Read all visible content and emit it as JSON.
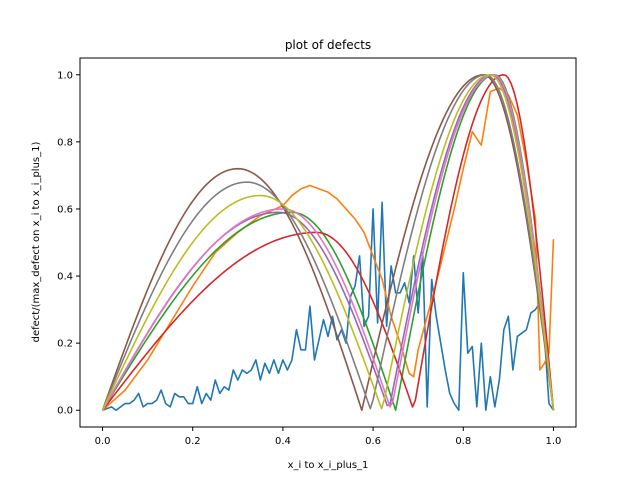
{
  "chart_data": {
    "type": "line",
    "title": "plot of defects",
    "xlabel": "x_i to x_i_plus_1",
    "ylabel": "defect/(max_defect on x_i to x_i_plus_1)",
    "xlim": [
      -0.05,
      1.05
    ],
    "ylim": [
      -0.05,
      1.05
    ],
    "xticks": [
      0.0,
      0.2,
      0.4,
      0.6,
      0.8,
      1.0
    ],
    "xtick_labels": [
      "0.0",
      "0.2",
      "0.4",
      "0.6",
      "0.8",
      "1.0"
    ],
    "yticks": [
      0.0,
      0.2,
      0.4,
      0.6,
      0.8,
      1.0
    ],
    "ytick_labels": [
      "0.0",
      "0.2",
      "0.4",
      "0.6",
      "0.8",
      "1.0"
    ],
    "grid": false,
    "legend": false,
    "series": [
      {
        "color": "#1f77b4",
        "x": [
          0.0,
          0.02,
          0.03,
          0.04,
          0.05,
          0.06,
          0.07,
          0.08,
          0.09,
          0.1,
          0.11,
          0.12,
          0.13,
          0.14,
          0.15,
          0.16,
          0.17,
          0.18,
          0.19,
          0.2,
          0.21,
          0.22,
          0.23,
          0.24,
          0.25,
          0.26,
          0.27,
          0.28,
          0.29,
          0.3,
          0.31,
          0.32,
          0.33,
          0.34,
          0.35,
          0.36,
          0.37,
          0.38,
          0.39,
          0.4,
          0.41,
          0.42,
          0.43,
          0.44,
          0.45,
          0.46,
          0.47,
          0.48,
          0.49,
          0.5,
          0.51,
          0.52,
          0.53,
          0.54,
          0.55,
          0.56,
          0.57,
          0.58,
          0.59,
          0.6,
          0.61,
          0.62,
          0.63,
          0.64,
          0.65,
          0.66,
          0.67,
          0.68,
          0.69,
          0.7,
          0.71,
          0.72,
          0.73,
          0.74,
          0.75,
          0.76,
          0.77,
          0.78,
          0.79,
          0.8,
          0.81,
          0.82,
          0.83,
          0.84,
          0.85,
          0.86,
          0.87,
          0.88,
          0.89,
          0.9,
          0.91,
          0.92,
          0.93,
          0.94,
          0.95,
          0.96,
          0.97,
          0.98,
          0.99,
          1.0
        ],
        "y": [
          0.0,
          0.01,
          0.0,
          0.01,
          0.02,
          0.02,
          0.03,
          0.05,
          0.01,
          0.02,
          0.02,
          0.03,
          0.06,
          0.02,
          0.01,
          0.05,
          0.04,
          0.04,
          0.02,
          0.02,
          0.07,
          0.02,
          0.05,
          0.03,
          0.09,
          0.05,
          0.07,
          0.06,
          0.12,
          0.09,
          0.12,
          0.11,
          0.12,
          0.15,
          0.09,
          0.14,
          0.11,
          0.15,
          0.11,
          0.15,
          0.12,
          0.15,
          0.24,
          0.18,
          0.18,
          0.31,
          0.15,
          0.21,
          0.27,
          0.22,
          0.28,
          0.21,
          0.24,
          0.2,
          0.34,
          0.37,
          0.46,
          0.25,
          0.28,
          0.6,
          0.26,
          0.62,
          0.25,
          0.43,
          0.35,
          0.35,
          0.38,
          0.32,
          0.46,
          0.29,
          0.47,
          0.01,
          0.39,
          0.28,
          0.2,
          0.12,
          0.05,
          0.02,
          0.0,
          0.41,
          0.17,
          0.19,
          0.01,
          0.2,
          0.0,
          0.1,
          0.01,
          0.09,
          0.24,
          0.28,
          0.12,
          0.22,
          0.23,
          0.24,
          0.29,
          0.3,
          0.32,
          0.22,
          0.02,
          0.0
        ],
        "note": ""
      },
      {
        "color": "#ff7f0e",
        "x": [
          0.0,
          0.05,
          0.1,
          0.15,
          0.2,
          0.25,
          0.3,
          0.35,
          0.4,
          0.42,
          0.44,
          0.46,
          0.48,
          0.5,
          0.52,
          0.54,
          0.56,
          0.58,
          0.6,
          0.62,
          0.64,
          0.66,
          0.68,
          0.69,
          0.7,
          0.72,
          0.74,
          0.76,
          0.78,
          0.8,
          0.82,
          0.84,
          0.86,
          0.88,
          0.9,
          0.92,
          0.94,
          0.96,
          0.97,
          0.98,
          0.99,
          1.0
        ],
        "y": [
          0.0,
          0.06,
          0.15,
          0.26,
          0.37,
          0.47,
          0.53,
          0.58,
          0.61,
          0.64,
          0.66,
          0.67,
          0.66,
          0.65,
          0.63,
          0.6,
          0.57,
          0.53,
          0.46,
          0.39,
          0.28,
          0.2,
          0.11,
          0.1,
          0.18,
          0.28,
          0.38,
          0.49,
          0.6,
          0.72,
          0.83,
          0.79,
          0.95,
          0.96,
          0.94,
          0.88,
          0.74,
          0.57,
          0.12,
          0.14,
          0.17,
          0.51
        ]
      },
      {
        "color": "#2ca02c",
        "shape": "hump",
        "peak1": [
          0.42,
          0.59
        ],
        "min1": 0.65,
        "peak2": [
          0.87,
          1.0
        ]
      },
      {
        "color": "#d62728",
        "shape": "hump",
        "peak1": [
          0.475,
          0.53
        ],
        "min1": 0.69,
        "peak2": [
          0.89,
          1.0
        ]
      },
      {
        "color": "#9467bd",
        "shape": "hump",
        "peak1": [
          0.39,
          0.59
        ],
        "min1": 0.635,
        "peak2": [
          0.865,
          1.0
        ]
      },
      {
        "color": "#8c564b",
        "shape": "hump",
        "peak1": [
          0.3,
          0.72
        ],
        "min1": 0.575,
        "peak2": [
          0.845,
          1.0
        ]
      },
      {
        "color": "#e377c2",
        "shape": "hump",
        "peak1": [
          0.4,
          0.6
        ],
        "min1": 0.64,
        "peak2": [
          0.868,
          1.0
        ]
      },
      {
        "color": "#7f7f7f",
        "shape": "hump",
        "peak1": [
          0.32,
          0.68
        ],
        "min1": 0.595,
        "peak2": [
          0.85,
          1.0
        ]
      },
      {
        "color": "#bcbd22",
        "shape": "hump",
        "peak1": [
          0.35,
          0.64
        ],
        "min1": 0.62,
        "peak2": [
          0.86,
          1.0
        ]
      }
    ]
  }
}
